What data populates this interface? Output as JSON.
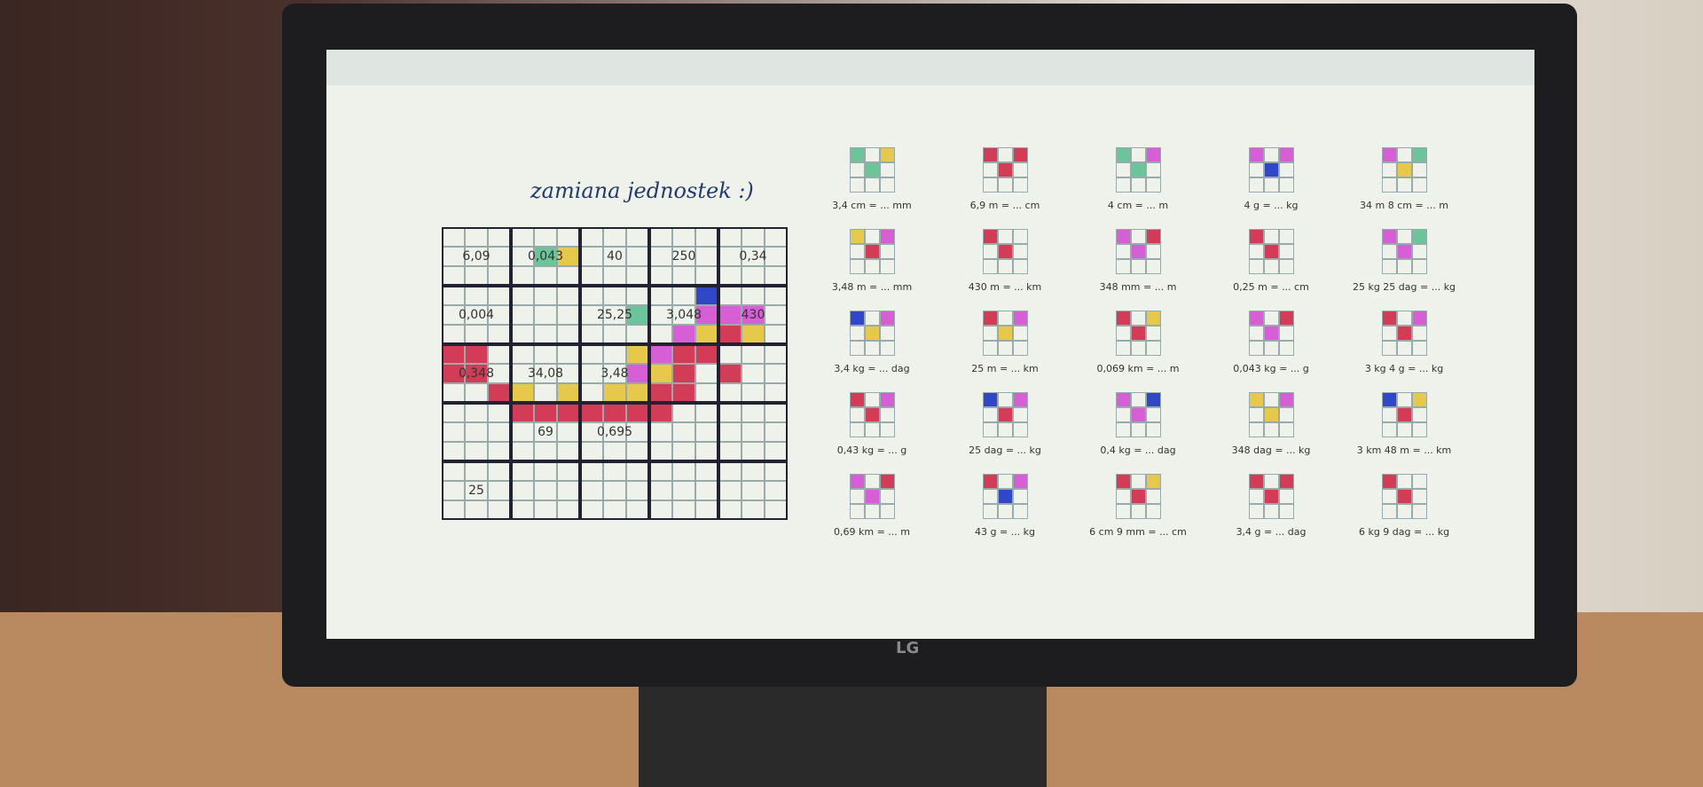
{
  "page": {
    "title": "zamiana jednostek :)",
    "grid": {
      "rows": [
        [
          "6,09",
          "0,043",
          "40",
          "250",
          "0,34"
        ],
        [
          "0,004",
          null,
          "25,25",
          "3,048",
          "430"
        ],
        [
          "0,348",
          "34,08",
          "3,48",
          null,
          null
        ],
        [
          null,
          "69",
          "0,695",
          null,
          null
        ],
        [
          "25",
          null,
          null,
          null,
          null
        ]
      ]
    },
    "pieces": [
      [
        "3,4 cm = ... mm",
        "6,9 m = ... cm",
        "4 cm = ... m",
        "4 g = ... kg",
        "34 m 8 cm = ... m"
      ],
      [
        "3,48 m = ... mm",
        "430 m = ... km",
        "348 mm = ... m",
        "0,25 m = ... cm",
        "25 kg 25 dag = ... kg"
      ],
      [
        "3,4 kg = ... dag",
        "25 m = ... km",
        "0,069 km = ... m",
        "0,043 kg = ... g",
        "3 kg 4 g = ... kg"
      ],
      [
        "0,43 kg = ... g",
        "25 dag = ... kg",
        "0,4 kg = ... dag",
        "348 dag = ... kg",
        "3 km 48 m = ... km"
      ],
      [
        "0,69 km = ... m",
        "43 g = ... kg",
        "6 cm 9 mm = ... cm",
        "3,4 g = ... dag",
        "6 kg 9 dag = ... kg"
      ]
    ],
    "brand": "LG"
  }
}
